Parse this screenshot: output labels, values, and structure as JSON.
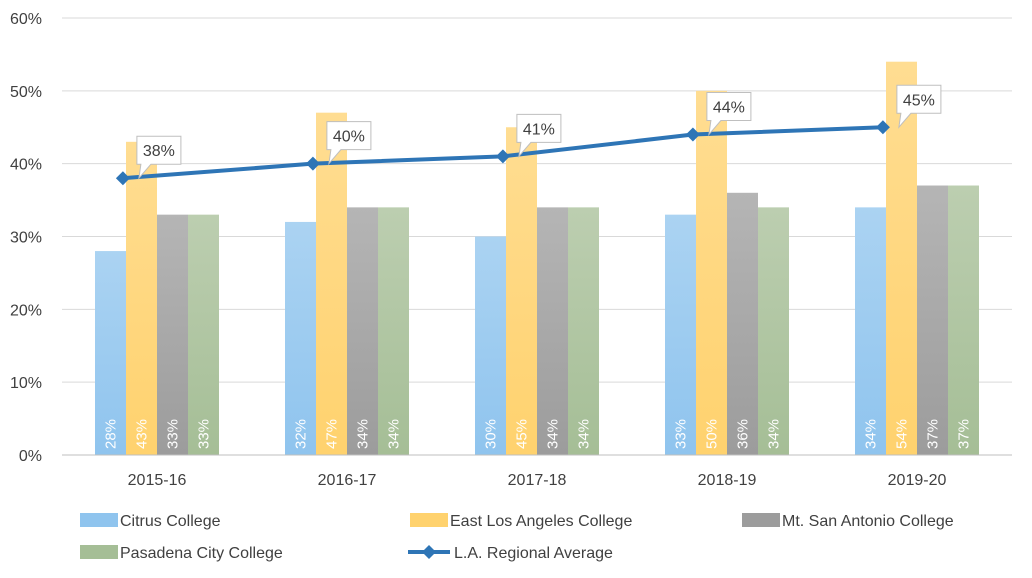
{
  "chart_data": {
    "type": "bar",
    "title": "",
    "xlabel": "",
    "ylabel": "",
    "categories": [
      "2015-16",
      "2016-17",
      "2017-18",
      "2018-19",
      "2019-20"
    ],
    "ylim": [
      0,
      60
    ],
    "yticks": [
      0,
      10,
      20,
      30,
      40,
      50,
      60
    ],
    "ytick_labels": [
      "0%",
      "10%",
      "20%",
      "30%",
      "40%",
      "50%",
      "60%"
    ],
    "grid": true,
    "legend_position": "bottom",
    "series": [
      {
        "name": "Citrus College",
        "kind": "bar",
        "color": "#8FC4EE",
        "values": [
          28,
          32,
          30,
          33,
          34
        ],
        "labels": [
          "28%",
          "32%",
          "30%",
          "33%",
          "34%"
        ]
      },
      {
        "name": "East Los Angeles College",
        "kind": "bar",
        "color": "#FFD26E",
        "values": [
          43,
          47,
          45,
          50,
          54
        ],
        "labels": [
          "43%",
          "47%",
          "45%",
          "50%",
          "54%"
        ]
      },
      {
        "name": "Mt. San Antonio College",
        "kind": "bar",
        "color": "#9C9C9C",
        "values": [
          33,
          34,
          34,
          36,
          37
        ],
        "labels": [
          "33%",
          "34%",
          "34%",
          "36%",
          "37%"
        ]
      },
      {
        "name": "Pasadena City College",
        "kind": "bar",
        "color": "#A5BE96",
        "values": [
          33,
          34,
          34,
          34,
          37
        ],
        "labels": [
          "33%",
          "34%",
          "34%",
          "34%",
          "37%"
        ]
      },
      {
        "name": "L.A. Regional Average",
        "kind": "line",
        "color": "#2E75B6",
        "values": [
          38,
          40,
          41,
          44,
          45
        ],
        "labels": [
          "38%",
          "40%",
          "41%",
          "44%",
          "45%"
        ]
      }
    ]
  }
}
